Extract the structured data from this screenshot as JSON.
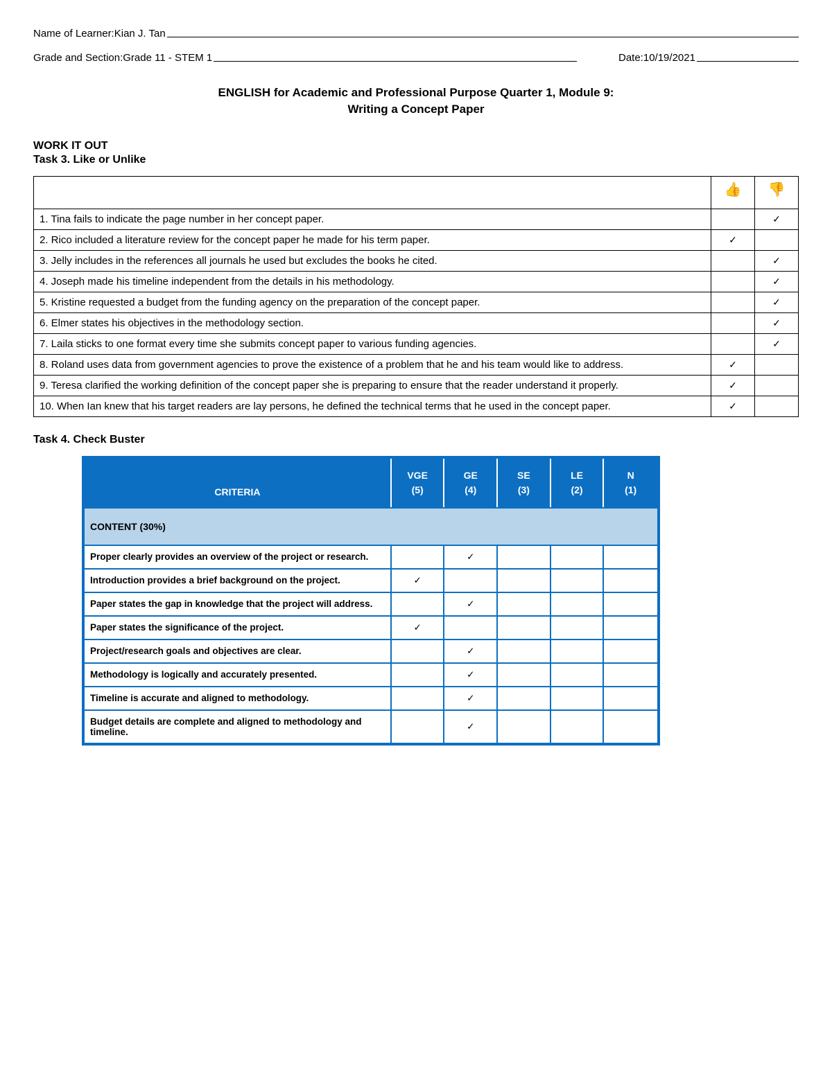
{
  "header": {
    "name_label": "Name of Learner: ",
    "name_value": "Kian J. Tan",
    "grade_label": "Grade and Section: ",
    "grade_value": "Grade 11 - STEM 1",
    "date_label": "Date: ",
    "date_value": "10/19/2021"
  },
  "title": {
    "line1": "ENGLISH for Academic and Professional Purpose Quarter 1, Module 9:",
    "line2": "Writing a Concept Paper"
  },
  "work_label": "WORK IT OUT",
  "task3": {
    "title": "Task 3. Like or Unlike",
    "like_icon": "👍",
    "dislike_icon": "👎",
    "rows": [
      {
        "text": "1. Tina fails to indicate the page number in her concept paper.",
        "like": "",
        "dislike": "✓"
      },
      {
        "text": "2. Rico included a literature review for the concept paper he made for his term paper.",
        "like": "✓",
        "dislike": ""
      },
      {
        "text": "3. Jelly includes in the references all journals he used but excludes the books he cited.",
        "like": "",
        "dislike": "✓"
      },
      {
        "text": "4. Joseph made his timeline independent from the details in his methodology.",
        "like": "",
        "dislike": "✓"
      },
      {
        "text": "5. Kristine requested a budget from the funding agency on the preparation of the concept paper.",
        "like": "",
        "dislike": "✓"
      },
      {
        "text": "6. Elmer states his objectives in the methodology section.",
        "like": "",
        "dislike": "✓"
      },
      {
        "text": "7. Laila sticks to one format every time she submits concept paper to various funding agencies.",
        "like": "",
        "dislike": "✓"
      },
      {
        "text": "8. Roland uses data from government agencies to prove the existence of a problem that he and his team would like to address.",
        "like": "✓",
        "dislike": ""
      },
      {
        "text": "9. Teresa clarified the working definition of the concept paper she is preparing to ensure that the reader understand it properly.",
        "like": "✓",
        "dislike": ""
      },
      {
        "text": "10. When Ian knew that his target readers are lay persons, he defined the technical terms that he used in the concept paper.",
        "like": "✓",
        "dislike": ""
      }
    ]
  },
  "task4": {
    "title": "Task 4. Check Buster",
    "criteria_head": "CRITERIA",
    "cols": [
      {
        "top": "VGE",
        "bot": "(5)"
      },
      {
        "top": "GE",
        "bot": "(4)"
      },
      {
        "top": "SE",
        "bot": "(3)"
      },
      {
        "top": "LE",
        "bot": "(2)"
      },
      {
        "top": "N",
        "bot": "(1)"
      }
    ],
    "section_label": "CONTENT (30%)",
    "rows": [
      {
        "text": "Proper clearly provides an overview of the project or research.",
        "marks": [
          "",
          "✓",
          "",
          "",
          ""
        ]
      },
      {
        "text": "Introduction provides a brief background on the project.",
        "marks": [
          "✓",
          "",
          "",
          "",
          ""
        ]
      },
      {
        "text": "Paper states the gap in knowledge that the project will address.",
        "marks": [
          "",
          "✓",
          "",
          "",
          ""
        ]
      },
      {
        "text": "Paper states the significance of the project.",
        "marks": [
          "✓",
          "",
          "",
          "",
          ""
        ]
      },
      {
        "text": "Project/research goals and objectives are clear.",
        "marks": [
          "",
          "✓",
          "",
          "",
          ""
        ]
      },
      {
        "text": "Methodology is logically and accurately presented.",
        "marks": [
          "",
          "✓",
          "",
          "",
          ""
        ]
      },
      {
        "text": "Timeline is accurate and aligned to methodology.",
        "marks": [
          "",
          "✓",
          "",
          "",
          ""
        ]
      },
      {
        "text": "Budget details are complete and aligned to methodology and timeline.",
        "marks": [
          "",
          "✓",
          "",
          "",
          ""
        ]
      }
    ],
    "colors": {
      "header_bg": "#0d6fc2",
      "header_fg": "#ffffff",
      "section_bg": "#b8d4ea",
      "border": "#0d6fc2"
    }
  }
}
